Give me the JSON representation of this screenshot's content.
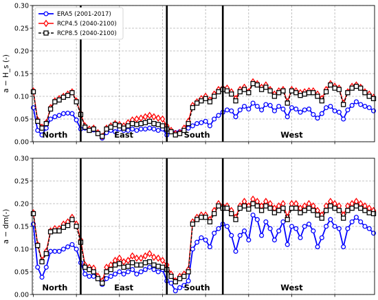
{
  "chart_data": [
    {
      "type": "line",
      "ylabel": "a − H_s (-)",
      "ylim": [
        0,
        0.3
      ],
      "yticks": [
        "0.00",
        "0.05",
        "0.10",
        "0.15",
        "0.20",
        "0.25",
        "0.30"
      ],
      "x_count": 80,
      "grid": true,
      "legend": "top-left",
      "region_dividers": [
        11,
        31,
        44
      ],
      "regions": [
        {
          "label": "North",
          "x": 5
        },
        {
          "label": "East",
          "x": 21
        },
        {
          "label": "South",
          "x": 38
        },
        {
          "label": "West",
          "x": 60
        }
      ],
      "series": [
        {
          "name": "ERA5 (2001-2017)",
          "color": "#0000ff",
          "marker": "circle",
          "values": [
            0.075,
            0.025,
            0.015,
            0.03,
            0.05,
            0.055,
            0.058,
            0.062,
            0.063,
            0.062,
            0.048,
            0.028,
            0.03,
            0.025,
            0.026,
            0.02,
            0.008,
            0.02,
            0.025,
            0.022,
            0.028,
            0.025,
            0.025,
            0.028,
            0.025,
            0.028,
            0.028,
            0.03,
            0.028,
            0.025,
            0.028,
            0.015,
            0.022,
            0.02,
            0.022,
            0.025,
            0.03,
            0.035,
            0.04,
            0.042,
            0.045,
            0.035,
            0.05,
            0.058,
            0.065,
            0.07,
            0.068,
            0.055,
            0.07,
            0.078,
            0.072,
            0.085,
            0.078,
            0.07,
            0.082,
            0.08,
            0.068,
            0.078,
            0.072,
            0.055,
            0.075,
            0.072,
            0.065,
            0.07,
            0.072,
            0.06,
            0.052,
            0.062,
            0.075,
            0.078,
            0.068,
            0.065,
            0.05,
            0.07,
            0.08,
            0.088,
            0.082,
            0.078,
            0.075,
            0.068
          ]
        },
        {
          "name": "RCP4.5 (2040-2100)",
          "color": "#ff0000",
          "marker": "diamond",
          "values": [
            0.112,
            0.048,
            0.032,
            0.042,
            0.075,
            0.09,
            0.095,
            0.1,
            0.105,
            0.11,
            0.09,
            0.062,
            0.035,
            0.028,
            0.03,
            0.02,
            0.012,
            0.03,
            0.035,
            0.04,
            0.038,
            0.035,
            0.042,
            0.048,
            0.05,
            0.052,
            0.055,
            0.058,
            0.055,
            0.052,
            0.05,
            0.035,
            0.025,
            0.018,
            0.02,
            0.03,
            0.045,
            0.08,
            0.088,
            0.095,
            0.1,
            0.092,
            0.105,
            0.115,
            0.118,
            0.118,
            0.11,
            0.095,
            0.115,
            0.12,
            0.11,
            0.132,
            0.128,
            0.12,
            0.125,
            0.115,
            0.105,
            0.112,
            0.115,
            0.088,
            0.115,
            0.112,
            0.108,
            0.11,
            0.112,
            0.112,
            0.105,
            0.095,
            0.115,
            0.128,
            0.122,
            0.118,
            0.085,
            0.11,
            0.122,
            0.125,
            0.12,
            0.11,
            0.105,
            0.098
          ]
        },
        {
          "name": "RCP8.5 (2040-2100)",
          "color": "#000000",
          "marker": "square",
          "values": [
            0.11,
            0.045,
            0.03,
            0.04,
            0.072,
            0.088,
            0.092,
            0.098,
            0.102,
            0.108,
            0.088,
            0.06,
            0.032,
            0.025,
            0.028,
            0.018,
            0.012,
            0.028,
            0.032,
            0.038,
            0.035,
            0.03,
            0.035,
            0.04,
            0.038,
            0.04,
            0.042,
            0.045,
            0.04,
            0.038,
            0.035,
            0.028,
            0.022,
            0.015,
            0.018,
            0.025,
            0.04,
            0.075,
            0.085,
            0.09,
            0.095,
            0.088,
            0.1,
            0.11,
            0.115,
            0.112,
            0.105,
            0.09,
            0.11,
            0.115,
            0.108,
            0.128,
            0.125,
            0.115,
            0.12,
            0.112,
            0.1,
            0.108,
            0.112,
            0.085,
            0.112,
            0.108,
            0.102,
            0.105,
            0.108,
            0.108,
            0.1,
            0.09,
            0.11,
            0.125,
            0.118,
            0.115,
            0.082,
            0.108,
            0.118,
            0.122,
            0.118,
            0.108,
            0.1,
            0.095
          ]
        }
      ]
    },
    {
      "type": "line",
      "ylabel": "a − dm(-)",
      "ylim": [
        0,
        0.3
      ],
      "yticks": [
        "0.00",
        "0.05",
        "0.10",
        "0.15",
        "0.20",
        "0.25",
        "0.30"
      ],
      "x_count": 80,
      "grid": true,
      "region_dividers": [
        11,
        31,
        44
      ],
      "regions": [
        {
          "label": "North",
          "x": 5
        },
        {
          "label": "East",
          "x": 21
        },
        {
          "label": "South",
          "x": 38
        },
        {
          "label": "West",
          "x": 60
        }
      ],
      "series": [
        {
          "name": "ERA5 (2001-2017)",
          "color": "#0000ff",
          "marker": "circle",
          "values": [
            0.155,
            0.06,
            0.038,
            0.06,
            0.095,
            0.095,
            0.095,
            0.1,
            0.105,
            0.11,
            0.1,
            0.07,
            0.045,
            0.04,
            0.04,
            0.035,
            0.022,
            0.035,
            0.04,
            0.045,
            0.05,
            0.045,
            0.05,
            0.055,
            0.045,
            0.05,
            0.055,
            0.06,
            0.055,
            0.05,
            0.055,
            0.03,
            0.025,
            0.008,
            0.015,
            0.02,
            0.03,
            0.1,
            0.115,
            0.125,
            0.12,
            0.105,
            0.135,
            0.145,
            0.155,
            0.15,
            0.13,
            0.095,
            0.13,
            0.14,
            0.12,
            0.175,
            0.165,
            0.13,
            0.16,
            0.145,
            0.12,
            0.14,
            0.16,
            0.11,
            0.15,
            0.145,
            0.125,
            0.15,
            0.155,
            0.14,
            0.105,
            0.125,
            0.15,
            0.165,
            0.15,
            0.145,
            0.105,
            0.145,
            0.16,
            0.17,
            0.16,
            0.15,
            0.145,
            0.135
          ]
        },
        {
          "name": "RCP4.5 (2040-2100)",
          "color": "#ff0000",
          "marker": "diamond",
          "values": [
            0.18,
            0.11,
            0.075,
            0.095,
            0.14,
            0.145,
            0.145,
            0.155,
            0.16,
            0.17,
            0.155,
            0.12,
            0.065,
            0.06,
            0.058,
            0.04,
            0.03,
            0.06,
            0.065,
            0.075,
            0.08,
            0.072,
            0.075,
            0.085,
            0.08,
            0.08,
            0.085,
            0.09,
            0.082,
            0.08,
            0.075,
            0.065,
            0.045,
            0.03,
            0.04,
            0.045,
            0.055,
            0.16,
            0.17,
            0.175,
            0.175,
            0.165,
            0.185,
            0.2,
            0.195,
            0.195,
            0.185,
            0.17,
            0.195,
            0.205,
            0.195,
            0.21,
            0.205,
            0.195,
            0.205,
            0.2,
            0.19,
            0.195,
            0.2,
            0.17,
            0.2,
            0.2,
            0.19,
            0.195,
            0.2,
            0.195,
            0.185,
            0.175,
            0.195,
            0.205,
            0.2,
            0.195,
            0.175,
            0.195,
            0.2,
            0.205,
            0.2,
            0.195,
            0.19,
            0.185
          ]
        },
        {
          "name": "RCP8.5 (2040-2100)",
          "color": "#000000",
          "marker": "square",
          "values": [
            0.178,
            0.108,
            0.072,
            0.09,
            0.138,
            0.14,
            0.14,
            0.148,
            0.152,
            0.165,
            0.15,
            0.115,
            0.06,
            0.055,
            0.05,
            0.035,
            0.025,
            0.05,
            0.055,
            0.065,
            0.068,
            0.06,
            0.062,
            0.07,
            0.065,
            0.065,
            0.07,
            0.072,
            0.065,
            0.062,
            0.06,
            0.055,
            0.04,
            0.028,
            0.035,
            0.04,
            0.05,
            0.155,
            0.165,
            0.17,
            0.17,
            0.16,
            0.178,
            0.195,
            0.19,
            0.19,
            0.178,
            0.165,
            0.19,
            0.195,
            0.188,
            0.2,
            0.195,
            0.185,
            0.195,
            0.19,
            0.18,
            0.185,
            0.19,
            0.165,
            0.19,
            0.19,
            0.18,
            0.185,
            0.19,
            0.185,
            0.175,
            0.168,
            0.185,
            0.195,
            0.19,
            0.185,
            0.168,
            0.185,
            0.19,
            0.195,
            0.19,
            0.185,
            0.18,
            0.178
          ]
        }
      ]
    }
  ]
}
